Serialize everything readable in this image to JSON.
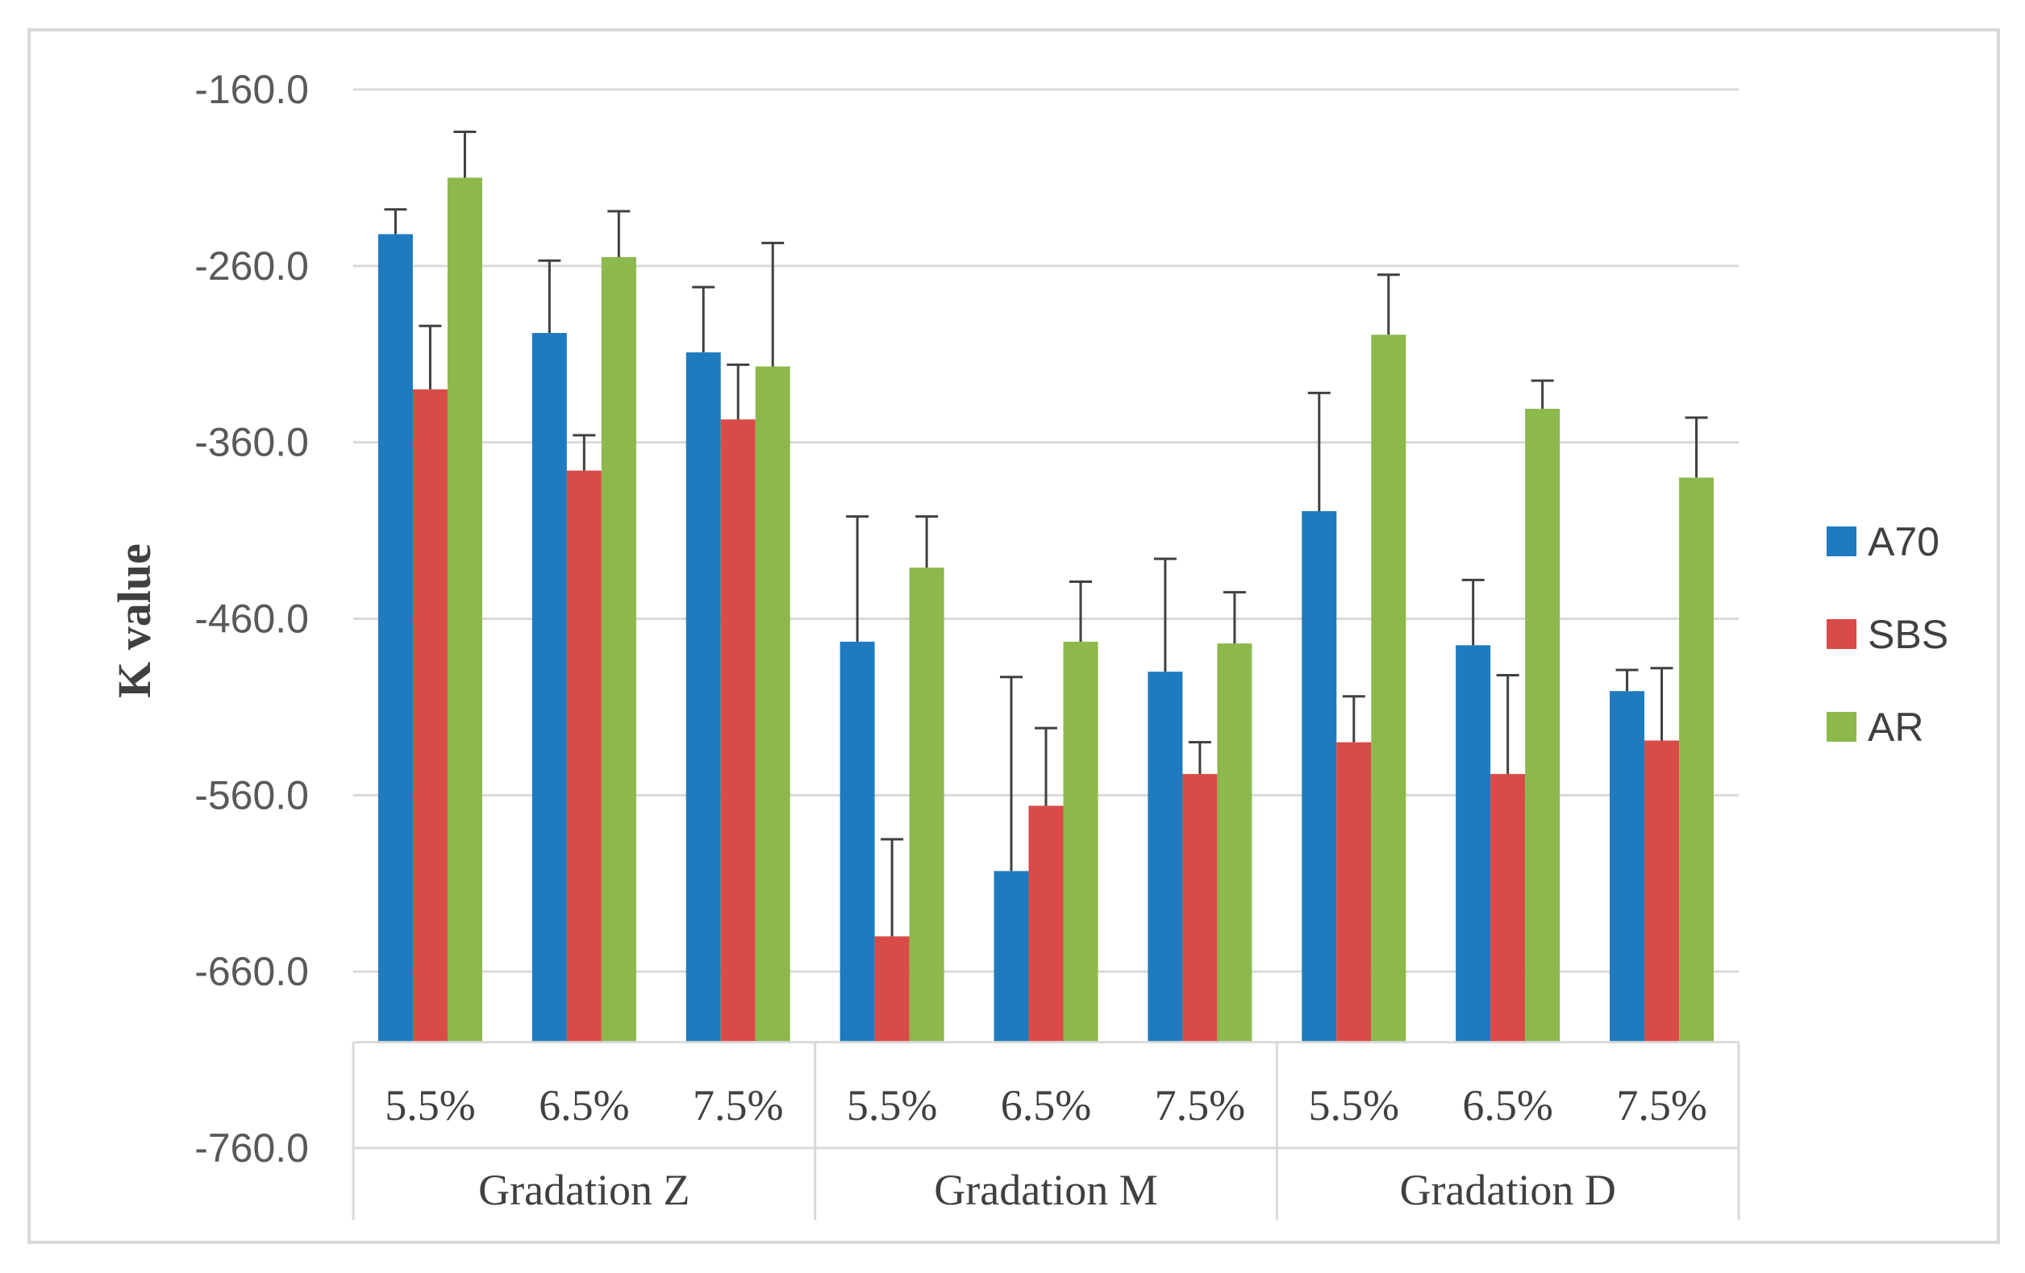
{
  "chart_data": {
    "type": "bar",
    "ylabel": "K value",
    "ylim": [
      -760,
      -160
    ],
    "y_ticks": [
      "-160.0",
      "-260.0",
      "-360.0",
      "-460.0",
      "-560.0",
      "-660.0",
      "-760.0"
    ],
    "y_tick_values": [
      -160,
      -260,
      -360,
      -460,
      -560,
      -660,
      -760
    ],
    "baseline": -700,
    "grid": true,
    "legend_position": "right",
    "group_labels": [
      "Gradation Z",
      "Gradation M",
      "Gradation D"
    ],
    "categories": [
      "5.5%",
      "6.5%",
      "7.5%",
      "5.5%",
      "6.5%",
      "7.5%",
      "5.5%",
      "6.5%",
      "7.5%"
    ],
    "series": [
      {
        "name": "A70",
        "color": "#1f7bbf",
        "values": [
          -242,
          -298,
          -309,
          -473,
          -603,
          -490,
          -399,
          -475,
          -501
        ],
        "errors": [
          14,
          41,
          37,
          71,
          110,
          64,
          67,
          37,
          12
        ]
      },
      {
        "name": "SBS",
        "color": "#d94b47",
        "values": [
          -330,
          -376,
          -347,
          -640,
          -566,
          -548,
          -530,
          -548,
          -529
        ],
        "errors": [
          36,
          20,
          31,
          55,
          44,
          18,
          26,
          56,
          41
        ]
      },
      {
        "name": "AR",
        "color": "#8cb84c",
        "values": [
          -210,
          -255,
          -317,
          -431,
          -473,
          -474,
          -299,
          -341,
          -380
        ],
        "errors": [
          26,
          26,
          70,
          29,
          34,
          29,
          34,
          16,
          34
        ]
      }
    ]
  }
}
